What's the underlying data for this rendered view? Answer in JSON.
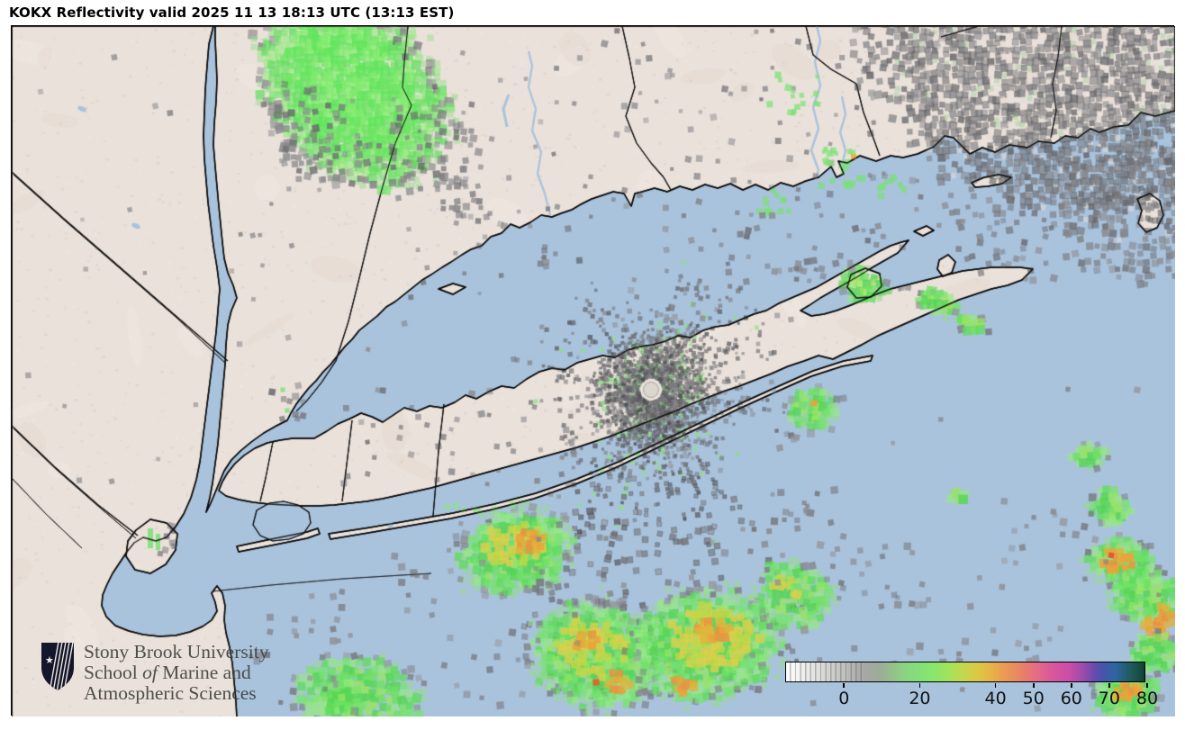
{
  "header": {
    "title": "KOKX Reflectivity valid 2025 11 13 18:13 UTC (13:13 EST)"
  },
  "map": {
    "water_color": "#a9c3dd",
    "land_color": "#eae1da",
    "outline_color": "#0d0d0d",
    "radar_site_marker": "radar-location-circle"
  },
  "colorbar": {
    "tick_labels": [
      "0",
      "20",
      "40",
      "50",
      "60",
      "70",
      "80"
    ],
    "gradient_stops": [
      {
        "pct": 0,
        "color": "#fdfdfd"
      },
      {
        "pct": 3,
        "color": "#f4f4f3"
      },
      {
        "pct": 6,
        "color": "#eaeae9"
      },
      {
        "pct": 9,
        "color": "#dfdfde"
      },
      {
        "pct": 12,
        "color": "#d3d3d2"
      },
      {
        "pct": 16,
        "color": "#c0c0bf"
      },
      {
        "pct": 19,
        "color": "#b2b2b1"
      },
      {
        "pct": 22,
        "color": "#a7a7a6"
      },
      {
        "pct": 26,
        "color": "#9dab99"
      },
      {
        "pct": 30,
        "color": "#93c389"
      },
      {
        "pct": 34,
        "color": "#8ad67f"
      },
      {
        "pct": 37,
        "color": "#83e079"
      },
      {
        "pct": 41,
        "color": "#89e66c"
      },
      {
        "pct": 45,
        "color": "#a0e35c"
      },
      {
        "pct": 49,
        "color": "#c0d94f"
      },
      {
        "pct": 53,
        "color": "#d9ca45"
      },
      {
        "pct": 57,
        "color": "#e6b447"
      },
      {
        "pct": 60,
        "color": "#e9a050"
      },
      {
        "pct": 64,
        "color": "#e98b5e"
      },
      {
        "pct": 67,
        "color": "#e87a70"
      },
      {
        "pct": 70,
        "color": "#e56a85"
      },
      {
        "pct": 73,
        "color": "#dc5c97"
      },
      {
        "pct": 76,
        "color": "#d353a1"
      },
      {
        "pct": 79,
        "color": "#cb4da7"
      },
      {
        "pct": 82,
        "color": "#a74caa"
      },
      {
        "pct": 84,
        "color": "#8a4bad"
      },
      {
        "pct": 86,
        "color": "#684bad"
      },
      {
        "pct": 88,
        "color": "#4b52a9"
      },
      {
        "pct": 90,
        "color": "#3a5ca4"
      },
      {
        "pct": 92,
        "color": "#2e66a0"
      },
      {
        "pct": 94,
        "color": "#265f7e"
      },
      {
        "pct": 96,
        "color": "#1f5a60"
      },
      {
        "pct": 98,
        "color": "#185349"
      },
      {
        "pct": 100,
        "color": "#123f38"
      }
    ]
  },
  "logo": {
    "line1": "Stony Brook University",
    "line2_pre": "School ",
    "line2_italic": "of",
    "line2_post": " Marine and",
    "line3": "Atmospheric Sciences"
  }
}
